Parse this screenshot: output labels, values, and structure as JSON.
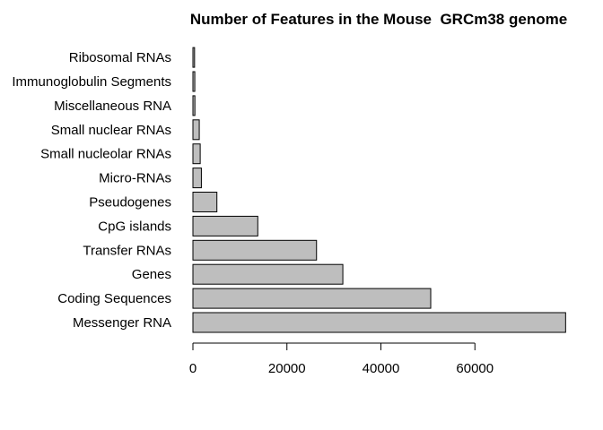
{
  "chart_data": {
    "type": "bar",
    "orientation": "horizontal",
    "title": "Number of Features in the Mouse  GRCm38 genome",
    "xlabel": "",
    "ylabel": "",
    "categories": [
      "Messenger RNA",
      "Coding Sequences",
      "Genes",
      "Transfer RNAs",
      "CpG islands",
      "Pseudogenes",
      "Micro-RNAs",
      "Small nucleolar RNAs",
      "Small nuclear RNAs",
      "Miscellaneous RNA",
      "Immunoglobulin Segments",
      "Ribosomal RNAs"
    ],
    "values": [
      79300,
      50600,
      31900,
      26300,
      13800,
      5100,
      1800,
      1550,
      1350,
      420,
      400,
      350
    ],
    "xlim": [
      0,
      80000
    ],
    "xticks": [
      0,
      20000,
      40000,
      60000
    ],
    "xtick_labels": [
      "0",
      "20000",
      "40000",
      "60000"
    ],
    "bar_color": "#bebebe",
    "grid": false
  }
}
